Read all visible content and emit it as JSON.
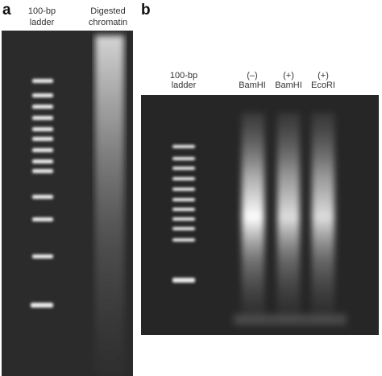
{
  "panel_a": {
    "label": "a",
    "lanes": [
      {
        "lines": [
          "100-bp",
          "ladder"
        ]
      },
      {
        "lines": [
          "Digested",
          "chromatin"
        ]
      }
    ]
  },
  "panel_b": {
    "label": "b",
    "lanes": [
      {
        "lines": [
          "100-bp",
          "ladder"
        ]
      },
      {
        "lines": [
          "(–)",
          "BamHI"
        ]
      },
      {
        "lines": [
          "(+)",
          "BamHI"
        ]
      },
      {
        "lines": [
          "(+)",
          "EcoRI"
        ]
      }
    ]
  }
}
